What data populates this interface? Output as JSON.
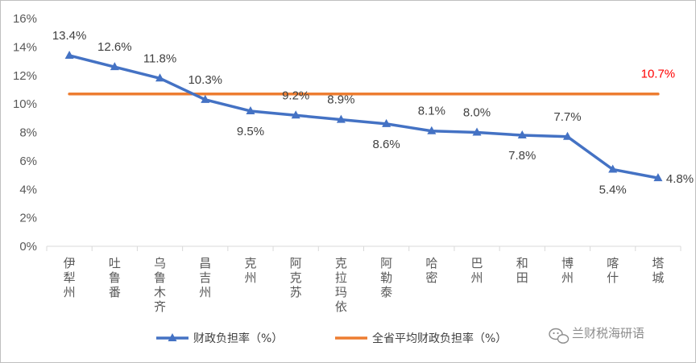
{
  "chart_data": {
    "type": "line",
    "categories": [
      "伊犁州",
      "吐鲁番",
      "乌鲁木齐",
      "昌吉州",
      "克州",
      "阿克苏",
      "克拉玛依",
      "阿勒泰",
      "哈密",
      "巴州",
      "和田",
      "博州",
      "喀什",
      "塔城"
    ],
    "series": [
      {
        "name": "财政负担率（%）",
        "values": [
          13.4,
          12.6,
          11.8,
          10.3,
          9.5,
          9.2,
          8.9,
          8.6,
          8.1,
          8.0,
          7.8,
          7.7,
          5.4,
          4.8
        ],
        "labels": [
          "13.4%",
          "12.6%",
          "11.8%",
          "10.3%",
          "9.5%",
          "9.2%",
          "8.9%",
          "8.6%",
          "8.1%",
          "8.0%",
          "7.8%",
          "7.7%",
          "5.4%",
          "4.8%"
        ],
        "color": "#4472c4",
        "marker": "triangle"
      },
      {
        "name": "全省平均财政负担率（%）",
        "values": [
          10.7,
          10.7,
          10.7,
          10.7,
          10.7,
          10.7,
          10.7,
          10.7,
          10.7,
          10.7,
          10.7,
          10.7,
          10.7,
          10.7
        ],
        "label": "10.7%",
        "color": "#ed7d31",
        "label_color": "#ff0000"
      }
    ],
    "ylim": [
      0,
      16
    ],
    "yticks": [
      "0%",
      "2%",
      "4%",
      "6%",
      "8%",
      "10%",
      "12%",
      "14%",
      "16%"
    ],
    "grid": false,
    "legend": "bottom"
  },
  "watermark": {
    "text": "兰财税海研语",
    "icon": "wechat-icon"
  }
}
